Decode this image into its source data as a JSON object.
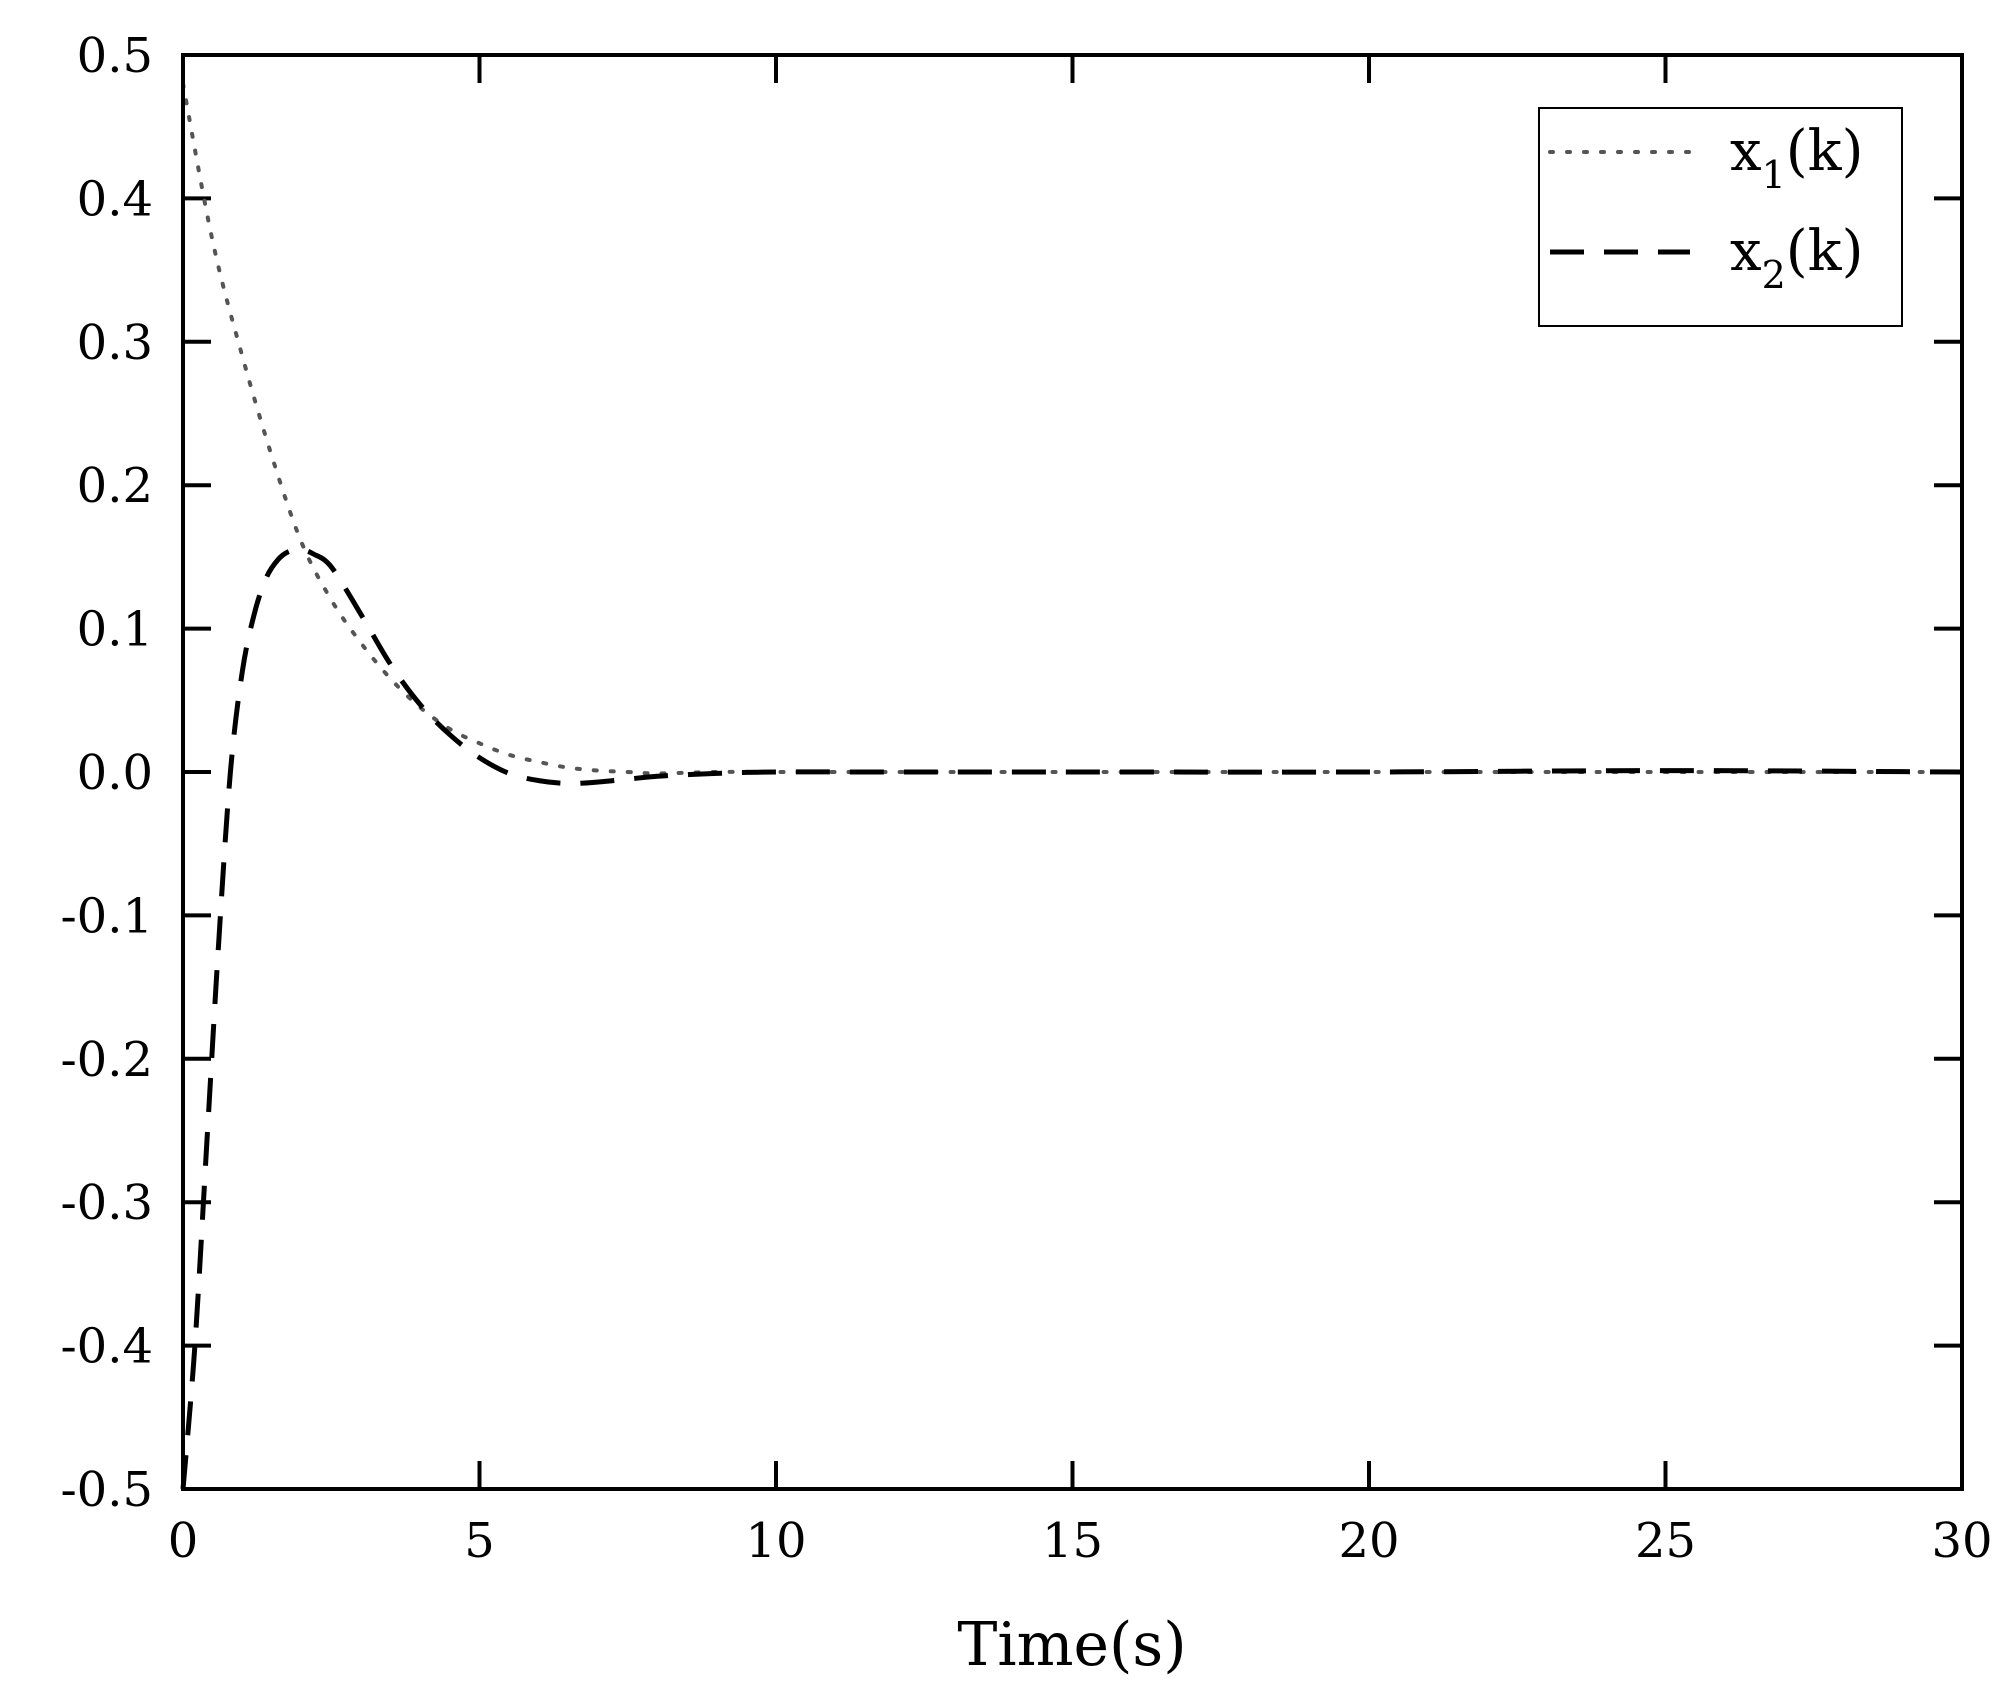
{
  "chart_data": {
    "type": "line",
    "title": "",
    "xlabel": "Time(s)",
    "ylabel": "",
    "xlim": [
      0,
      30
    ],
    "ylim": [
      -0.5,
      0.5
    ],
    "xticks": [
      "0",
      "5",
      "10",
      "15",
      "20",
      "25",
      "30"
    ],
    "yticks": [
      "0.5",
      "0.4",
      "0.3",
      "0.2",
      "0.1",
      "0.0",
      "-0.1",
      "-0.2",
      "-0.3",
      "-0.4",
      "-0.5"
    ],
    "grid": false,
    "legend_position": "top-right",
    "series": [
      {
        "name": "x1(k)",
        "legend_main": "x",
        "legend_sub": "1",
        "legend_tail": "(k)",
        "style": "dotted",
        "color": "#555555",
        "x": [
          0,
          0.5,
          1,
          1.5,
          2,
          2.5,
          3,
          3.5,
          4,
          4.5,
          5,
          5.5,
          6,
          6.5,
          7,
          7.5,
          8,
          9,
          10,
          12,
          15,
          20,
          25,
          30
        ],
        "y": [
          0.48,
          0.37,
          0.29,
          0.22,
          0.16,
          0.12,
          0.09,
          0.065,
          0.045,
          0.03,
          0.02,
          0.012,
          0.007,
          0.003,
          0.001,
          0.0,
          -0.001,
          0.0,
          0.0,
          0.0,
          0.0,
          0.0,
          0.0,
          0.0
        ]
      },
      {
        "name": "x2(k)",
        "legend_main": "x",
        "legend_sub": "2",
        "legend_tail": "(k)",
        "style": "dashed",
        "color": "#000000",
        "x": [
          0,
          0.2,
          0.4,
          0.6,
          0.8,
          1.0,
          1.2,
          1.4,
          1.6,
          1.8,
          2.0,
          2.2,
          2.5,
          3.0,
          3.5,
          4.0,
          4.5,
          5.0,
          5.5,
          6.0,
          6.5,
          7.0,
          7.5,
          8.0,
          9.0,
          10,
          12,
          15,
          20,
          25,
          30
        ],
        "y": [
          -0.5,
          -0.4,
          -0.26,
          -0.12,
          0.0,
          0.07,
          0.11,
          0.135,
          0.148,
          0.154,
          0.155,
          0.152,
          0.143,
          0.11,
          0.075,
          0.047,
          0.026,
          0.01,
          -0.001,
          -0.006,
          -0.008,
          -0.007,
          -0.005,
          -0.003,
          -0.001,
          0.0,
          0.0,
          0.0,
          0.0,
          0.001,
          0.0
        ]
      }
    ]
  }
}
